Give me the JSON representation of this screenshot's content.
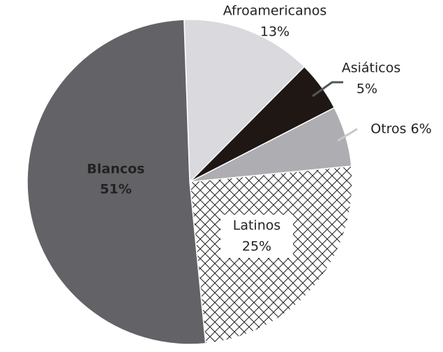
{
  "chart_data": {
    "type": "pie",
    "categories": [
      "Afroamericanos",
      "Asiáticos",
      "Otros",
      "Latinos",
      "Blancos"
    ],
    "values": [
      13,
      5,
      6,
      25,
      51
    ],
    "value_labels": [
      "13%",
      "5%",
      "6%",
      "25%",
      "51%"
    ],
    "colors": [
      "#d9d9de",
      "#1e1714",
      "#aeadb2",
      "#ffffff",
      "#636266"
    ],
    "hatch": [
      false,
      false,
      false,
      true,
      false
    ]
  }
}
